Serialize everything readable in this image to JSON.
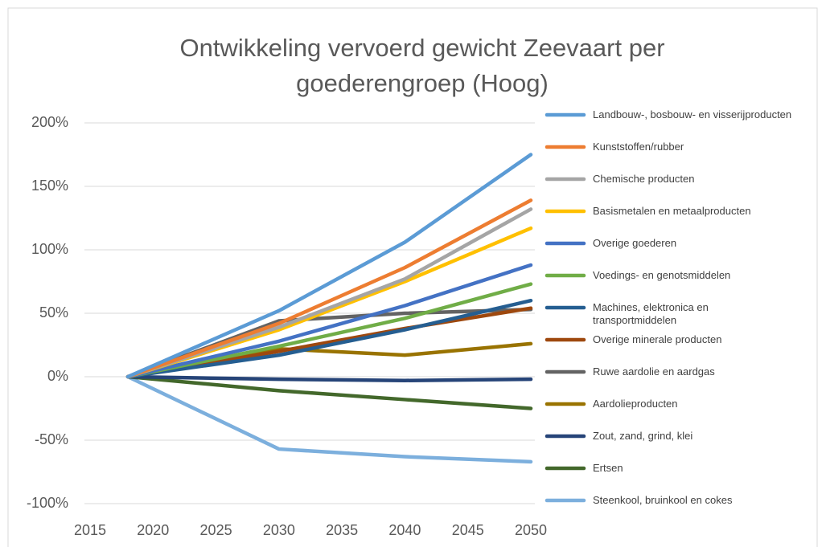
{
  "chart_data": {
    "type": "line",
    "title": "Ontwikkeling vervoerd gewicht Zeevaart per goederengroep (Hoog)",
    "x": [
      2018,
      2030,
      2040,
      2050
    ],
    "xlim": [
      2015,
      2050
    ],
    "xticks": [
      2015,
      2020,
      2025,
      2030,
      2035,
      2040,
      2045,
      2050
    ],
    "ylim": [
      -100,
      200
    ],
    "yticks": [
      {
        "value": -100,
        "label": "-100%"
      },
      {
        "value": -50,
        "label": "-50%"
      },
      {
        "value": 0,
        "label": "0%"
      },
      {
        "value": 50,
        "label": "50%"
      },
      {
        "value": 100,
        "label": "100%"
      },
      {
        "value": 150,
        "label": "150%"
      },
      {
        "value": 200,
        "label": "200%"
      }
    ],
    "grid": true,
    "legend": "right",
    "series": [
      {
        "name": "Landbouw-, bosbouw- en visserijproducten",
        "color": "#5b9bd5",
        "values": [
          0,
          52,
          106,
          175
        ]
      },
      {
        "name": "Kunststoffen/rubber",
        "color": "#ed7d31",
        "values": [
          0,
          42,
          86,
          139
        ]
      },
      {
        "name": "Chemische producten",
        "color": "#a5a5a5",
        "values": [
          0,
          39,
          77,
          132
        ]
      },
      {
        "name": "Basismetalen en metaalproducten",
        "color": "#ffc000",
        "values": [
          0,
          37,
          75,
          117
        ]
      },
      {
        "name": "Overige goederen",
        "color": "#4472c4",
        "values": [
          0,
          28,
          56,
          88
        ]
      },
      {
        "name": "Voedings- en genotsmiddelen",
        "color": "#70ad47",
        "values": [
          0,
          24,
          46,
          73
        ]
      },
      {
        "name": "Machines, elektronica en transportmiddelen",
        "color": "#255e91",
        "values": [
          0,
          17,
          37,
          60
        ]
      },
      {
        "name": "Overige minerale producten",
        "color": "#9e480e",
        "values": [
          0,
          20,
          38,
          54
        ]
      },
      {
        "name": "Ruwe aardolie en aardgas",
        "color": "#636363",
        "values": [
          0,
          44,
          50,
          53
        ]
      },
      {
        "name": "Aardolieproducten",
        "color": "#997300",
        "values": [
          0,
          22,
          17,
          26
        ]
      },
      {
        "name": "Zout, zand, grind, klei",
        "color": "#264478",
        "values": [
          0,
          -2,
          -3,
          -2
        ]
      },
      {
        "name": "Ertsen",
        "color": "#43682b",
        "values": [
          0,
          -11,
          -18,
          -25
        ]
      },
      {
        "name": "Steenkool, bruinkool en cokes",
        "color": "#7cafdd",
        "values": [
          0,
          -57,
          -63,
          -67
        ]
      }
    ]
  }
}
